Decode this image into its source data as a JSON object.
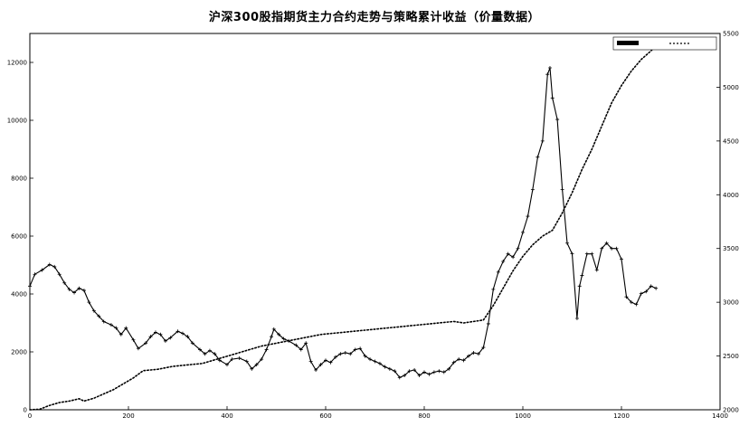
{
  "chart_data": {
    "type": "line",
    "title": "沪深300股指期货主力合约走势与策略累计收益（价量数据）",
    "x": {
      "range": [
        0,
        1400
      ],
      "ticks": [
        0,
        200,
        400,
        600,
        800,
        1000,
        1200,
        1400
      ]
    },
    "y_left": {
      "range": [
        0,
        13000
      ],
      "ticks": [
        0,
        2000,
        4000,
        6000,
        8000,
        10000,
        12000
      ]
    },
    "y_right": {
      "range": [
        2000,
        5500
      ],
      "ticks": [
        2000,
        2500,
        3000,
        3500,
        4000,
        4500,
        5000,
        5500
      ]
    },
    "grid": false,
    "legend_position": "top-right",
    "colors": {
      "series": "#000000",
      "axes": "#000000"
    },
    "series": [
      {
        "axis": "right",
        "style": "solid-with-markers",
        "points": [
          [
            0,
            3150
          ],
          [
            10,
            3260
          ],
          [
            25,
            3300
          ],
          [
            40,
            3350
          ],
          [
            50,
            3330
          ],
          [
            60,
            3260
          ],
          [
            70,
            3180
          ],
          [
            80,
            3120
          ],
          [
            90,
            3090
          ],
          [
            100,
            3130
          ],
          [
            110,
            3110
          ],
          [
            120,
            3000
          ],
          [
            130,
            2920
          ],
          [
            140,
            2870
          ],
          [
            150,
            2820
          ],
          [
            165,
            2790
          ],
          [
            175,
            2760
          ],
          [
            185,
            2700
          ],
          [
            195,
            2760
          ],
          [
            210,
            2650
          ],
          [
            220,
            2570
          ],
          [
            235,
            2620
          ],
          [
            245,
            2680
          ],
          [
            255,
            2720
          ],
          [
            265,
            2700
          ],
          [
            275,
            2640
          ],
          [
            285,
            2670
          ],
          [
            300,
            2730
          ],
          [
            310,
            2710
          ],
          [
            320,
            2680
          ],
          [
            330,
            2620
          ],
          [
            345,
            2560
          ],
          [
            355,
            2520
          ],
          [
            365,
            2550
          ],
          [
            375,
            2520
          ],
          [
            385,
            2460
          ],
          [
            400,
            2420
          ],
          [
            410,
            2470
          ],
          [
            425,
            2480
          ],
          [
            440,
            2450
          ],
          [
            450,
            2380
          ],
          [
            460,
            2420
          ],
          [
            470,
            2470
          ],
          [
            480,
            2560
          ],
          [
            490,
            2680
          ],
          [
            495,
            2750
          ],
          [
            505,
            2700
          ],
          [
            515,
            2660
          ],
          [
            525,
            2640
          ],
          [
            540,
            2600
          ],
          [
            550,
            2560
          ],
          [
            560,
            2620
          ],
          [
            570,
            2450
          ],
          [
            580,
            2370
          ],
          [
            590,
            2420
          ],
          [
            600,
            2460
          ],
          [
            610,
            2440
          ],
          [
            620,
            2490
          ],
          [
            630,
            2520
          ],
          [
            640,
            2530
          ],
          [
            650,
            2520
          ],
          [
            660,
            2560
          ],
          [
            670,
            2570
          ],
          [
            680,
            2500
          ],
          [
            690,
            2470
          ],
          [
            700,
            2450
          ],
          [
            710,
            2430
          ],
          [
            720,
            2400
          ],
          [
            730,
            2380
          ],
          [
            740,
            2360
          ],
          [
            750,
            2300
          ],
          [
            760,
            2320
          ],
          [
            770,
            2360
          ],
          [
            780,
            2370
          ],
          [
            790,
            2320
          ],
          [
            800,
            2350
          ],
          [
            810,
            2330
          ],
          [
            820,
            2350
          ],
          [
            830,
            2360
          ],
          [
            840,
            2350
          ],
          [
            850,
            2380
          ],
          [
            860,
            2440
          ],
          [
            870,
            2470
          ],
          [
            880,
            2460
          ],
          [
            890,
            2500
          ],
          [
            900,
            2530
          ],
          [
            910,
            2520
          ],
          [
            920,
            2580
          ],
          [
            930,
            2800
          ],
          [
            940,
            3120
          ],
          [
            950,
            3280
          ],
          [
            960,
            3380
          ],
          [
            970,
            3450
          ],
          [
            980,
            3420
          ],
          [
            990,
            3500
          ],
          [
            1000,
            3650
          ],
          [
            1010,
            3800
          ],
          [
            1020,
            4050
          ],
          [
            1030,
            4350
          ],
          [
            1040,
            4500
          ],
          [
            1050,
            5120
          ],
          [
            1055,
            5180
          ],
          [
            1060,
            4900
          ],
          [
            1070,
            4700
          ],
          [
            1080,
            4050
          ],
          [
            1090,
            3550
          ],
          [
            1100,
            3450
          ],
          [
            1110,
            2850
          ],
          [
            1115,
            3150
          ],
          [
            1120,
            3250
          ],
          [
            1130,
            3450
          ],
          [
            1140,
            3450
          ],
          [
            1150,
            3300
          ],
          [
            1160,
            3500
          ],
          [
            1170,
            3550
          ],
          [
            1180,
            3500
          ],
          [
            1190,
            3500
          ],
          [
            1200,
            3400
          ],
          [
            1210,
            3050
          ],
          [
            1220,
            3000
          ],
          [
            1230,
            2980
          ],
          [
            1240,
            3080
          ],
          [
            1250,
            3100
          ],
          [
            1260,
            3150
          ],
          [
            1270,
            3130
          ]
        ]
      },
      {
        "axis": "left",
        "style": "dotted",
        "points": [
          [
            0,
            0
          ],
          [
            20,
            20
          ],
          [
            40,
            150
          ],
          [
            60,
            250
          ],
          [
            80,
            300
          ],
          [
            100,
            380
          ],
          [
            110,
            300
          ],
          [
            130,
            400
          ],
          [
            150,
            550
          ],
          [
            170,
            700
          ],
          [
            190,
            900
          ],
          [
            210,
            1100
          ],
          [
            230,
            1350
          ],
          [
            260,
            1400
          ],
          [
            290,
            1500
          ],
          [
            320,
            1550
          ],
          [
            350,
            1600
          ],
          [
            380,
            1750
          ],
          [
            410,
            1900
          ],
          [
            440,
            2050
          ],
          [
            470,
            2200
          ],
          [
            500,
            2300
          ],
          [
            530,
            2400
          ],
          [
            560,
            2500
          ],
          [
            590,
            2600
          ],
          [
            620,
            2650
          ],
          [
            650,
            2700
          ],
          [
            680,
            2750
          ],
          [
            710,
            2800
          ],
          [
            740,
            2850
          ],
          [
            770,
            2900
          ],
          [
            800,
            2950
          ],
          [
            830,
            3000
          ],
          [
            860,
            3050
          ],
          [
            880,
            3000
          ],
          [
            900,
            3050
          ],
          [
            920,
            3100
          ],
          [
            940,
            3600
          ],
          [
            960,
            4200
          ],
          [
            980,
            4800
          ],
          [
            1000,
            5300
          ],
          [
            1020,
            5700
          ],
          [
            1040,
            6000
          ],
          [
            1060,
            6200
          ],
          [
            1080,
            6800
          ],
          [
            1100,
            7500
          ],
          [
            1120,
            8300
          ],
          [
            1140,
            9000
          ],
          [
            1160,
            9800
          ],
          [
            1180,
            10600
          ],
          [
            1200,
            11200
          ],
          [
            1220,
            11700
          ],
          [
            1240,
            12100
          ],
          [
            1260,
            12400
          ],
          [
            1270,
            12600
          ]
        ]
      }
    ]
  }
}
